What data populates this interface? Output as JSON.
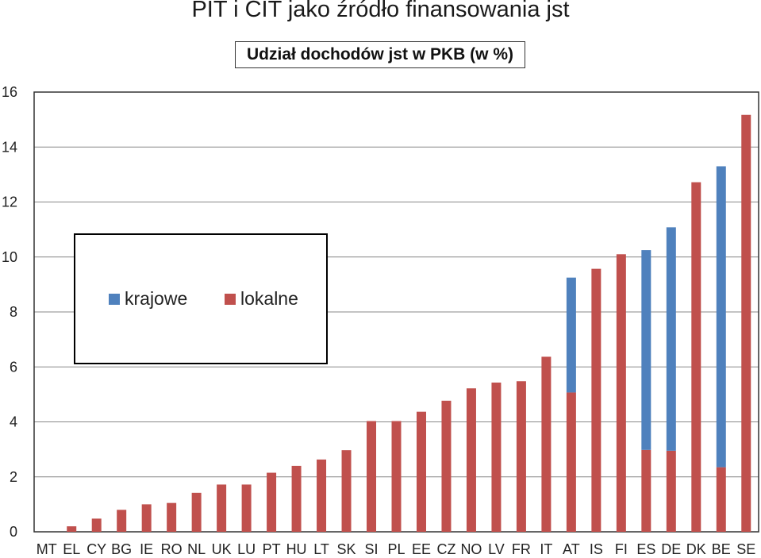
{
  "title": "PIT i CIT jako źródło finansowania jst",
  "subtitle": "Udział dochodów jst w PKB (w %)",
  "colors": {
    "krajowe": "#4f81bd",
    "lokalne": "#c0504d",
    "grid": "#888888"
  },
  "chart_data": {
    "type": "bar",
    "stacked": true,
    "title": "PIT i CIT jako źródło finansowania jst",
    "subtitle": "Udział dochodów jst w PKB (w %)",
    "xlabel": "",
    "ylabel": "",
    "ylim": [
      0,
      16
    ],
    "yticks": [
      0,
      2,
      4,
      6,
      8,
      10,
      12,
      14,
      16
    ],
    "grid": true,
    "legend_position": "left-middle",
    "categories": [
      "MT",
      "EL",
      "CY",
      "BG",
      "IE",
      "RO",
      "NL",
      "UK",
      "LU",
      "PT",
      "HU",
      "LT",
      "SK",
      "SI",
      "PL",
      "EE",
      "CZ",
      "NO",
      "LV",
      "FR",
      "IT",
      "AT",
      "IS",
      "FI",
      "ES",
      "DE",
      "DK",
      "BE",
      "SE"
    ],
    "series": [
      {
        "name": "lokalne",
        "color": "#c0504d",
        "values": [
          0,
          0.2,
          0.48,
          0.8,
          1.0,
          1.05,
          1.42,
          1.72,
          1.72,
          2.15,
          2.4,
          2.63,
          2.97,
          4.03,
          4.03,
          4.37,
          4.77,
          5.22,
          5.43,
          5.48,
          6.37,
          5.07,
          9.57,
          10.1,
          2.98,
          2.95,
          12.72,
          2.35,
          15.17
        ]
      },
      {
        "name": "krajowe",
        "color": "#4f81bd",
        "values": [
          0,
          0,
          0,
          0,
          0,
          0,
          0,
          0,
          0,
          0,
          0,
          0,
          0,
          0,
          0,
          0,
          0,
          0,
          0,
          0,
          0,
          4.18,
          0,
          0,
          7.27,
          8.13,
          0,
          10.95,
          0
        ]
      }
    ]
  }
}
